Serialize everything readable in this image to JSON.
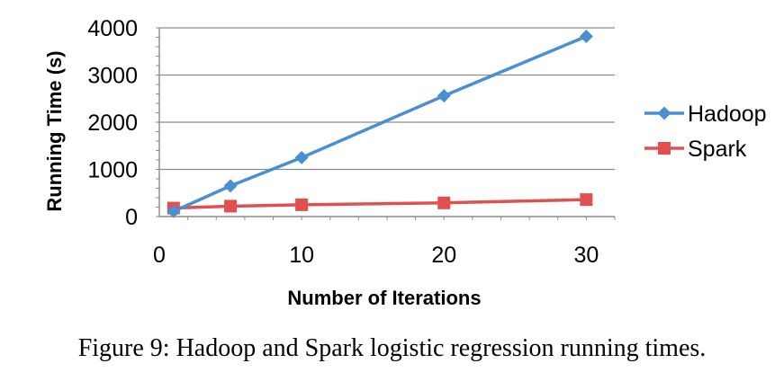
{
  "chart_data": {
    "type": "line",
    "xlabel": "Number of Iterations",
    "ylabel": "Running Time (s)",
    "xlim": [
      0,
      32
    ],
    "ylim": [
      0,
      4000
    ],
    "x_ticks": [
      0,
      10,
      20,
      30
    ],
    "y_ticks": [
      0,
      1000,
      2000,
      3000,
      4000
    ],
    "grid": "horizontal",
    "legend_position": "right",
    "series": [
      {
        "name": "Hadoop",
        "color": "#4a8fd1",
        "marker": "diamond",
        "x": [
          1,
          5,
          10,
          20,
          30
        ],
        "values": [
          110,
          650,
          1250,
          2560,
          3820
        ]
      },
      {
        "name": "Spark",
        "color": "#e0504f",
        "marker": "square",
        "x": [
          1,
          5,
          10,
          20,
          30
        ],
        "values": [
          180,
          220,
          250,
          290,
          360
        ]
      }
    ]
  },
  "caption": "Figure 9: Hadoop and Spark logistic regression running times."
}
